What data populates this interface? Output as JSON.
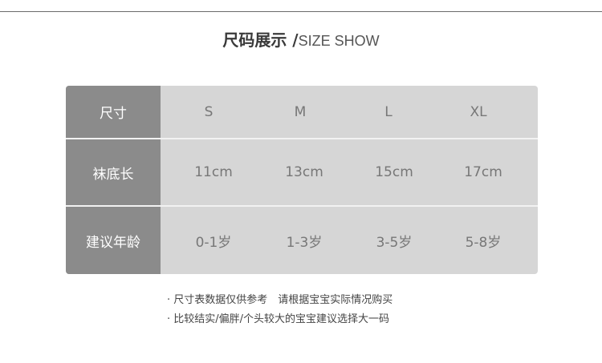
{
  "title": {
    "cn": "尺码展示 /",
    "en": "SIZE SHOW"
  },
  "table": {
    "rows": [
      {
        "label": "尺寸",
        "values": [
          "S",
          "M",
          "L",
          "XL"
        ]
      },
      {
        "label": "袜底长",
        "values": [
          "11cm",
          "13cm",
          "15cm",
          "17cm"
        ]
      },
      {
        "label": "建议年龄",
        "values": [
          "0-1岁",
          "1-3岁",
          "3-5岁",
          "5-8岁"
        ]
      }
    ]
  },
  "notes": [
    "· 尺寸表数据仅供参考　请根据宝宝实际情况购买",
    "· 比较结实/偏胖/个头较大的宝宝建议选择大一码"
  ]
}
